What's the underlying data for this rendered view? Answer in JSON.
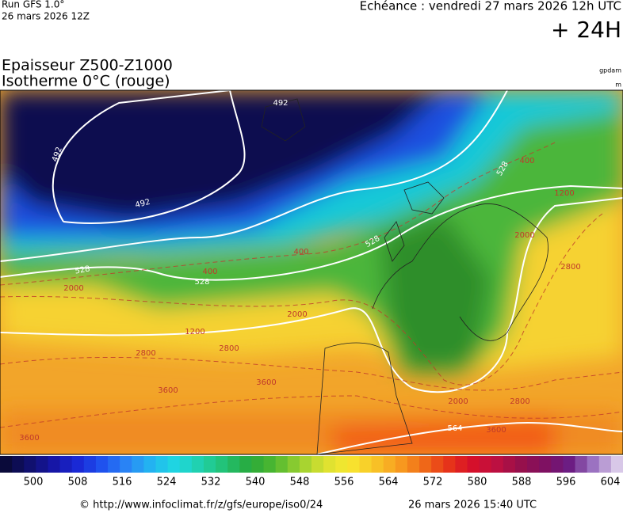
{
  "header": {
    "run": "Run GFS 1.0°",
    "run_date": "26 mars 2026 12Z",
    "echeance": "Echéance : vendredi 27 mars 2026 12h UTC",
    "lead": "+ 24H"
  },
  "titles": {
    "line1": "Epaisseur Z500-Z1000",
    "line2": "Isotherme 0°C (rouge)",
    "unit1": "gpdam",
    "unit2": "m"
  },
  "map": {
    "thickness_labels": [
      492,
      492,
      492,
      528,
      528,
      528,
      528,
      564
    ],
    "isotherm_labels": [
      400,
      400,
      400,
      2000,
      2000,
      2000,
      2000,
      1200,
      1200,
      2800,
      2800,
      2800,
      2800,
      3600,
      3600,
      3600,
      3600
    ]
  },
  "colorbar": {
    "labels": [
      500,
      508,
      516,
      524,
      532,
      540,
      548,
      556,
      564,
      572,
      580,
      588,
      596,
      604
    ]
  },
  "footer": {
    "source": "© http://www.infoclimat.fr/z/gfs/europe/iso0/24",
    "generated": "26 mars 2026 15:40 UTC"
  }
}
